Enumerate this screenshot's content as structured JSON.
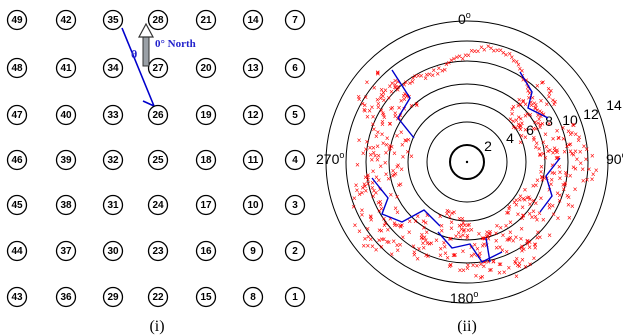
{
  "panel_i": {
    "label": "(i)",
    "nodes": [
      [
        49,
        42,
        35,
        28,
        21,
        14,
        7
      ],
      [
        48,
        41,
        34,
        27,
        20,
        13,
        6
      ],
      [
        47,
        40,
        33,
        26,
        19,
        12,
        5
      ],
      [
        46,
        39,
        32,
        25,
        18,
        11,
        4
      ],
      [
        45,
        38,
        31,
        24,
        17,
        10,
        3
      ],
      [
        44,
        37,
        30,
        23,
        16,
        9,
        2
      ],
      [
        43,
        36,
        29,
        22,
        15,
        8,
        1
      ]
    ],
    "north_label": "0° North",
    "theta_label": "θ",
    "accent_color": "#2222cc"
  },
  "panel_ii": {
    "label": "(ii)",
    "ring_labels": [
      "2",
      "4",
      "6",
      "8",
      "10",
      "12",
      "14"
    ],
    "direction_labels": {
      "top": "0",
      "right": "90",
      "bottom": "180",
      "left": "270",
      "superscript": "o"
    },
    "marker_color": "#ff0000",
    "line_color": "#0000cc"
  }
}
